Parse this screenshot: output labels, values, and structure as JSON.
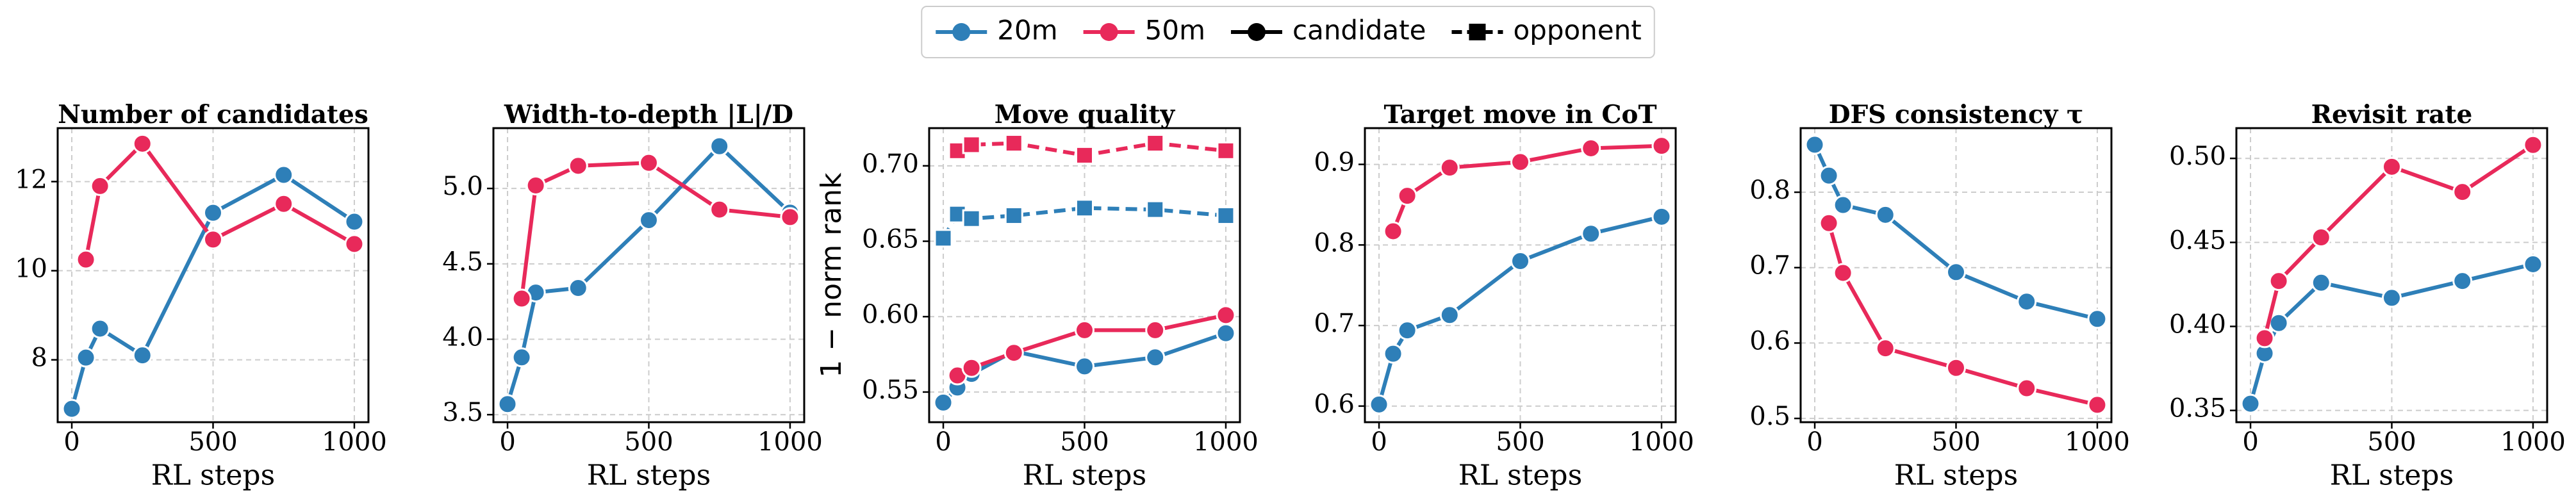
{
  "legend": {
    "items": [
      {
        "name": "20m",
        "color": "#2e7fb8",
        "marker": "circle",
        "dashed": false
      },
      {
        "name": "50m",
        "color": "#e8295a",
        "marker": "circle",
        "dashed": false
      },
      {
        "name": "candidate",
        "color": "#000000",
        "marker": "circle",
        "dashed": false
      },
      {
        "name": "opponent",
        "color": "#000000",
        "marker": "square",
        "dashed": true
      }
    ]
  },
  "chart_data": [
    {
      "type": "line",
      "title": "Number of candidates",
      "x_label": "RL steps",
      "x": [
        0,
        50,
        100,
        250,
        500,
        750,
        1000
      ],
      "xlim": [
        -50,
        1050
      ],
      "xticks": [
        0,
        500,
        1000
      ],
      "ylim": [
        6.6,
        13.2
      ],
      "yticks": [
        8,
        10,
        12
      ],
      "grid": true,
      "series": [
        {
          "name": "20m",
          "color": "#2e7fb8",
          "marker": "circle",
          "dashed": false,
          "values": [
            6.9,
            8.05,
            8.7,
            8.1,
            11.3,
            12.15,
            11.1
          ]
        },
        {
          "name": "50m",
          "color": "#e8295a",
          "marker": "circle",
          "dashed": false,
          "values": [
            null,
            10.25,
            11.9,
            12.85,
            10.7,
            11.5,
            10.6
          ]
        }
      ]
    },
    {
      "type": "line",
      "title": "Width-to-depth  |L|/D",
      "x_label": "RL steps",
      "x": [
        0,
        50,
        100,
        250,
        500,
        750,
        1000
      ],
      "xlim": [
        -50,
        1050
      ],
      "xticks": [
        0,
        500,
        1000
      ],
      "ylim": [
        3.45,
        5.4
      ],
      "yticks": [
        3.5,
        {
          "value": 4,
          "label": "4.0"
        },
        4.5,
        {
          "value": 5,
          "label": "5.0"
        }
      ],
      "grid": true,
      "series": [
        {
          "name": "20m",
          "color": "#2e7fb8",
          "marker": "circle",
          "dashed": false,
          "values": [
            3.57,
            3.88,
            4.31,
            4.34,
            4.79,
            5.28,
            4.84
          ]
        },
        {
          "name": "50m",
          "color": "#e8295a",
          "marker": "circle",
          "dashed": false,
          "values": [
            null,
            4.27,
            5.02,
            5.15,
            5.17,
            4.86,
            4.81
          ]
        }
      ]
    },
    {
      "type": "line",
      "title": "Move quality",
      "x_label": "RL steps",
      "y_label": "1 − norm rank",
      "x": [
        0,
        50,
        100,
        250,
        500,
        750,
        1000
      ],
      "xlim": [
        -50,
        1050
      ],
      "xticks": [
        0,
        500,
        1000
      ],
      "ylim": [
        0.53,
        0.725
      ],
      "yticks": [
        0.55,
        {
          "value": 0.6,
          "label": "0.60"
        },
        0.65,
        {
          "value": 0.7,
          "label": "0.70"
        }
      ],
      "grid": true,
      "series": [
        {
          "name": "20m",
          "color": "#2e7fb8",
          "marker": "circle",
          "dashed": false,
          "values": [
            0.543,
            0.553,
            0.562,
            0.577,
            0.567,
            0.573,
            0.589
          ]
        },
        {
          "name": "50m",
          "color": "#e8295a",
          "marker": "circle",
          "dashed": false,
          "values": [
            null,
            0.561,
            0.566,
            0.576,
            0.591,
            0.591,
            0.601
          ]
        },
        {
          "name": "20m",
          "color": "#2e7fb8",
          "marker": "square",
          "dashed": true,
          "values": [
            0.652,
            0.668,
            0.665,
            0.667,
            0.672,
            0.671,
            0.667
          ]
        },
        {
          "name": "50m",
          "color": "#e8295a",
          "marker": "square",
          "dashed": true,
          "values": [
            null,
            0.71,
            0.714,
            0.715,
            0.707,
            0.715,
            0.71
          ]
        }
      ]
    },
    {
      "type": "line",
      "title": "Target move in CoT",
      "x_label": "RL steps",
      "x": [
        0,
        50,
        100,
        250,
        500,
        750,
        1000
      ],
      "xlim": [
        -50,
        1050
      ],
      "xticks": [
        0,
        500,
        1000
      ],
      "ylim": [
        0.58,
        0.945
      ],
      "yticks": [
        0.6,
        0.7,
        0.8,
        0.9
      ],
      "grid": true,
      "series": [
        {
          "name": "20m",
          "color": "#2e7fb8",
          "marker": "circle",
          "dashed": false,
          "values": [
            0.602,
            0.665,
            0.694,
            0.713,
            0.78,
            0.814,
            0.835
          ]
        },
        {
          "name": "50m",
          "color": "#e8295a",
          "marker": "circle",
          "dashed": false,
          "values": [
            null,
            0.817,
            0.861,
            0.896,
            0.903,
            0.92,
            0.923
          ]
        }
      ]
    },
    {
      "type": "line",
      "title": "DFS consistency  τ",
      "x_label": "RL steps",
      "x": [
        0,
        50,
        100,
        250,
        500,
        750,
        1000
      ],
      "xlim": [
        -50,
        1050
      ],
      "xticks": [
        0,
        500,
        1000
      ],
      "ylim": [
        0.495,
        0.885
      ],
      "yticks": [
        0.5,
        0.6,
        0.7,
        0.8
      ],
      "grid": true,
      "series": [
        {
          "name": "20m",
          "color": "#2e7fb8",
          "marker": "circle",
          "dashed": false,
          "values": [
            0.863,
            0.822,
            0.783,
            0.77,
            0.694,
            0.655,
            0.632
          ]
        },
        {
          "name": "50m",
          "color": "#e8295a",
          "marker": "circle",
          "dashed": false,
          "values": [
            null,
            0.759,
            0.693,
            0.593,
            0.567,
            0.54,
            0.518
          ]
        }
      ]
    },
    {
      "type": "line",
      "title": "Revisit rate",
      "x_label": "RL steps",
      "x": [
        0,
        50,
        100,
        250,
        500,
        750,
        1000
      ],
      "xlim": [
        -50,
        1050
      ],
      "xticks": [
        0,
        500,
        1000
      ],
      "ylim": [
        0.343,
        0.518
      ],
      "yticks": [
        0.35,
        {
          "value": 0.4,
          "label": "0.40"
        },
        0.45,
        {
          "value": 0.5,
          "label": "0.50"
        }
      ],
      "grid": true,
      "series": [
        {
          "name": "20m",
          "color": "#2e7fb8",
          "marker": "circle",
          "dashed": false,
          "values": [
            0.354,
            0.384,
            0.402,
            0.426,
            0.417,
            0.427,
            0.437
          ]
        },
        {
          "name": "50m",
          "color": "#e8295a",
          "marker": "circle",
          "dashed": false,
          "values": [
            null,
            0.393,
            0.427,
            0.453,
            0.495,
            0.48,
            0.508
          ]
        }
      ]
    }
  ]
}
